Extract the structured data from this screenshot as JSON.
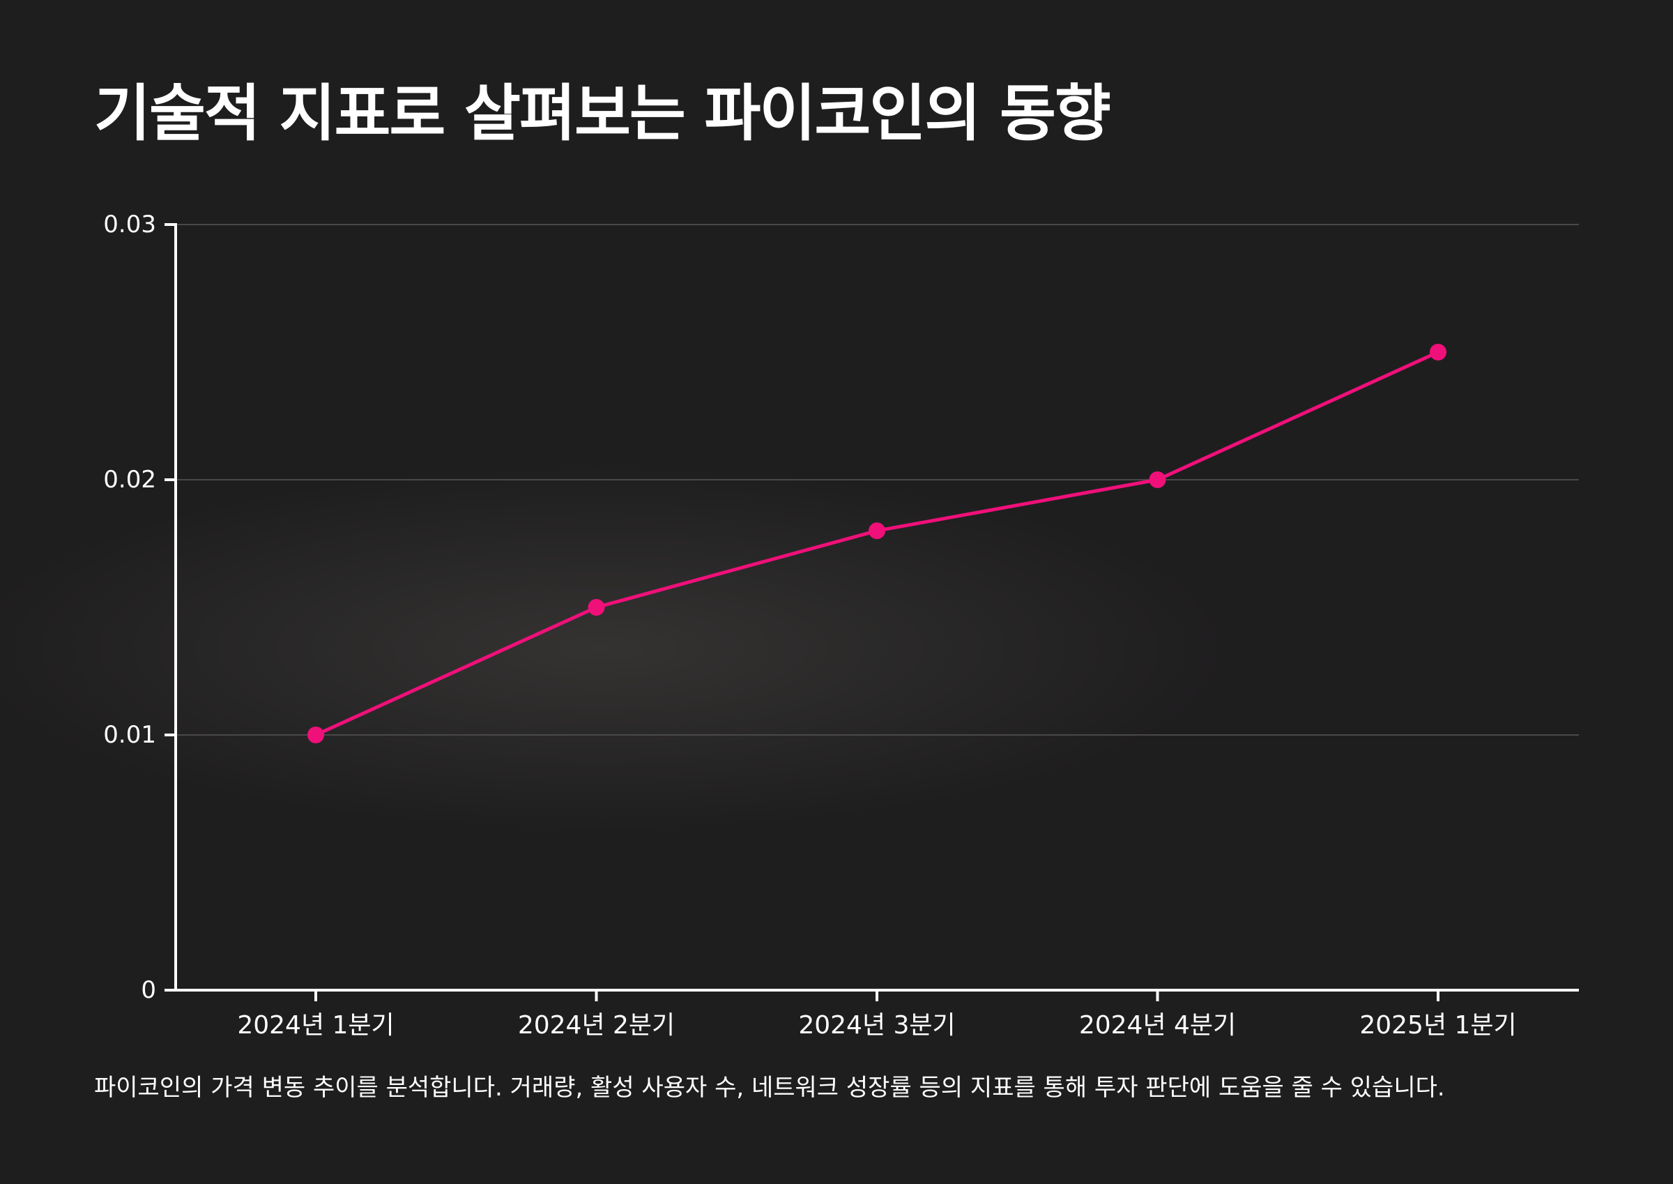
{
  "title": "기술적 지표로 살펴보는 파이코인의 동향",
  "caption": "파이코인의 가격 변동 추이를 분석합니다. 거래량, 활성 사용자 수, 네트워크 성장률 등의 지표를 통해 투자 판단에 도움을 줄 수 있습니다.",
  "colors": {
    "background": "#1f1e1f",
    "line": "#f0107a",
    "axis": "#ffffff",
    "grid": "#4a494a",
    "text": "#ffffff"
  },
  "chart_data": {
    "type": "line",
    "categories": [
      "2024년 1분기",
      "2024년 2분기",
      "2024년 3분기",
      "2024년 4분기",
      "2025년 1분기"
    ],
    "series": [
      {
        "values": [
          0.01,
          0.015,
          0.018,
          0.02,
          0.025
        ]
      }
    ],
    "yticks": [
      0,
      0.01,
      0.02,
      0.03
    ],
    "ytick_labels": [
      "0",
      "0.01",
      "0.02",
      "0.03"
    ],
    "ylim": [
      0,
      0.03
    ],
    "xlabel": "",
    "ylabel": "",
    "grid": true,
    "legend": "none"
  }
}
